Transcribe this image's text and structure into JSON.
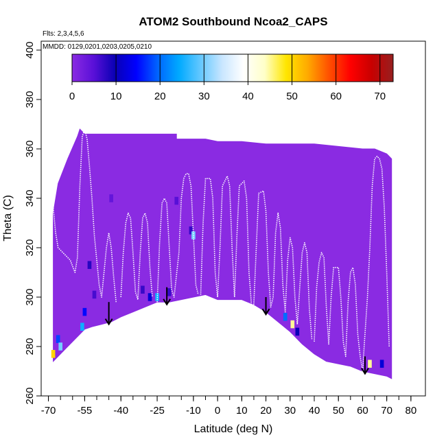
{
  "chart_data": {
    "type": "heatmap",
    "title": "ATOM2 Southbound Ncoa2_CAPS",
    "flights_note": "Flts: 2,3,4,5,6",
    "dates_note": "MMDD: 0129,0201,0203,0205,0210",
    "xlabel": "Latitude (deg N)",
    "ylabel": "Theta (C)",
    "xlim": [
      -70,
      80
    ],
    "ylim": [
      260,
      400
    ],
    "x_tick_labels": [
      "-70",
      "-55",
      "-40",
      "-25",
      "-10",
      "0",
      "10",
      "20",
      "30",
      "40",
      "50",
      "60",
      "70",
      "80"
    ],
    "x_tick_values": [
      -70,
      -55,
      -40,
      -25,
      -10,
      0,
      10,
      20,
      30,
      40,
      50,
      60,
      70,
      80
    ],
    "y_tick_labels": [
      "260",
      "280",
      "300",
      "320",
      "340",
      "360",
      "380",
      "400"
    ],
    "y_tick_values": [
      260,
      280,
      300,
      320,
      340,
      360,
      380,
      400
    ],
    "colorbar": {
      "range": [
        0,
        73
      ],
      "tick_labels": [
        "0",
        "10",
        "20",
        "30",
        "40",
        "50",
        "60",
        "70"
      ],
      "tick_values": [
        0,
        10,
        20,
        30,
        40,
        50,
        60,
        70
      ],
      "colors": [
        "#8a2be2",
        "#5a10d8",
        "#0a00b4",
        "#0000ff",
        "#0064ff",
        "#00aaff",
        "#64c8ff",
        "#c8e6ff",
        "#ffffff",
        "#ffffc8",
        "#ffe600",
        "#ffaa00",
        "#ff5000",
        "#ff0000",
        "#c80000",
        "#962020"
      ]
    },
    "background_fill_value": 0,
    "sampled_region": {
      "upper": [
        [
          -68,
          334
        ],
        [
          -66,
          346
        ],
        [
          -62,
          356
        ],
        [
          -58,
          365
        ],
        [
          -57,
          368
        ],
        [
          -55,
          366
        ],
        [
          -50,
          366
        ],
        [
          -40,
          366
        ],
        [
          -30,
          366
        ],
        [
          -17,
          366
        ],
        [
          -17,
          364
        ],
        [
          -5,
          364
        ],
        [
          0,
          363
        ],
        [
          10,
          363
        ],
        [
          20,
          362
        ],
        [
          30,
          362
        ],
        [
          40,
          362
        ],
        [
          50,
          361
        ],
        [
          60,
          360
        ],
        [
          62,
          360
        ],
        [
          65,
          360
        ],
        [
          70,
          358
        ],
        [
          72,
          356
        ]
      ],
      "lower": [
        [
          -68,
          274
        ],
        [
          -62,
          280
        ],
        [
          -57,
          285
        ],
        [
          -55,
          287
        ],
        [
          -52,
          288
        ],
        [
          -48,
          289
        ],
        [
          -44,
          290
        ],
        [
          -40,
          292
        ],
        [
          -35,
          294
        ],
        [
          -30,
          296
        ],
        [
          -25,
          298
        ],
        [
          -20,
          298
        ],
        [
          -15,
          299
        ],
        [
          -10,
          300
        ],
        [
          -5,
          301
        ],
        [
          0,
          299
        ],
        [
          5,
          299
        ],
        [
          10,
          299
        ],
        [
          15,
          297
        ],
        [
          20,
          294
        ],
        [
          25,
          290
        ],
        [
          30,
          286
        ],
        [
          35,
          281
        ],
        [
          40,
          277
        ],
        [
          45,
          274
        ],
        [
          50,
          273
        ],
        [
          55,
          272
        ],
        [
          60,
          270
        ],
        [
          65,
          269
        ],
        [
          70,
          268
        ],
        [
          72,
          267
        ]
      ]
    },
    "hotspots": [
      {
        "lat": -68,
        "theta": 277,
        "value": 50
      },
      {
        "lat": -66,
        "theta": 283,
        "value": 18
      },
      {
        "lat": -65,
        "theta": 280,
        "value": 30
      },
      {
        "lat": -56,
        "theta": 288,
        "value": 25
      },
      {
        "lat": -55,
        "theta": 294,
        "value": 15
      },
      {
        "lat": -53,
        "theta": 313,
        "value": 8
      },
      {
        "lat": -51,
        "theta": 301,
        "value": 6
      },
      {
        "lat": -44,
        "theta": 340,
        "value": 4
      },
      {
        "lat": -31,
        "theta": 303,
        "value": 7
      },
      {
        "lat": -28,
        "theta": 300,
        "value": 12
      },
      {
        "lat": -25,
        "theta": 300,
        "value": 25
      },
      {
        "lat": -20,
        "theta": 302,
        "value": 7
      },
      {
        "lat": -17,
        "theta": 339,
        "value": 5
      },
      {
        "lat": -11,
        "theta": 327,
        "value": 7
      },
      {
        "lat": -10,
        "theta": 325,
        "value": 30
      },
      {
        "lat": 28,
        "theta": 292,
        "value": 20
      },
      {
        "lat": 31,
        "theta": 289,
        "value": 45
      },
      {
        "lat": 33,
        "theta": 286,
        "value": 10
      },
      {
        "lat": 63,
        "theta": 273,
        "value": 45
      },
      {
        "lat": 68,
        "theta": 273,
        "value": 12
      }
    ],
    "profile_traces": [
      [
        [
          -68,
          336
        ],
        [
          -67,
          326
        ],
        [
          -66,
          320
        ],
        [
          -64,
          318
        ],
        [
          -61,
          315
        ],
        [
          -59,
          310
        ],
        [
          -58,
          316
        ],
        [
          -57,
          345
        ],
        [
          -56,
          365
        ],
        [
          -55,
          368
        ],
        [
          -54,
          364
        ],
        [
          -53,
          353
        ],
        [
          -52,
          340
        ],
        [
          -51,
          325
        ],
        [
          -50,
          315
        ],
        [
          -49,
          305
        ],
        [
          -48,
          300
        ],
        [
          -47,
          310
        ],
        [
          -46,
          320
        ],
        [
          -45,
          326
        ],
        [
          -44,
          320
        ],
        [
          -43,
          308
        ],
        [
          -42,
          298
        ]
      ],
      [
        [
          -40,
          300
        ],
        [
          -39,
          318
        ],
        [
          -38,
          330
        ],
        [
          -37,
          334
        ],
        [
          -36,
          332
        ],
        [
          -35,
          318
        ],
        [
          -34,
          302
        ],
        [
          -33,
          299
        ],
        [
          -32,
          318
        ],
        [
          -31,
          332
        ],
        [
          -30,
          334
        ],
        [
          -29,
          330
        ],
        [
          -28,
          312
        ],
        [
          -27,
          300
        ]
      ],
      [
        [
          -25,
          298
        ],
        [
          -24,
          322
        ],
        [
          -23,
          338
        ],
        [
          -22,
          340
        ],
        [
          -21,
          338
        ],
        [
          -20,
          320
        ],
        [
          -19,
          303
        ],
        [
          -18,
          300
        ],
        [
          -16,
          318
        ],
        [
          -15,
          340
        ],
        [
          -14,
          348
        ],
        [
          -13,
          350
        ],
        [
          -12,
          350
        ],
        [
          -11,
          345
        ],
        [
          -10,
          325
        ],
        [
          -9,
          305
        ],
        [
          -8,
          301
        ]
      ],
      [
        [
          -7,
          301
        ],
        [
          -6,
          330
        ],
        [
          -5,
          348
        ],
        [
          -3,
          348
        ],
        [
          -2,
          340
        ],
        [
          -1,
          310
        ],
        [
          0,
          300
        ],
        [
          1,
          320
        ],
        [
          2,
          345
        ],
        [
          4,
          349
        ],
        [
          5,
          345
        ],
        [
          6,
          320
        ],
        [
          7,
          300
        ],
        [
          8,
          325
        ],
        [
          9,
          345
        ],
        [
          11,
          347
        ],
        [
          12,
          340
        ],
        [
          13,
          310
        ],
        [
          14,
          297
        ]
      ],
      [
        [
          15,
          297
        ],
        [
          16,
          320
        ],
        [
          17,
          342
        ],
        [
          19,
          343
        ],
        [
          20,
          335
        ],
        [
          21,
          310
        ],
        [
          22,
          296
        ],
        [
          23,
          300
        ],
        [
          24,
          326
        ],
        [
          25,
          334
        ],
        [
          26,
          328
        ],
        [
          27,
          305
        ],
        [
          28,
          294
        ],
        [
          29,
          315
        ],
        [
          30,
          324
        ],
        [
          31,
          320
        ],
        [
          32,
          300
        ],
        [
          33,
          289
        ],
        [
          34,
          304
        ],
        [
          35,
          318
        ],
        [
          36,
          322
        ],
        [
          37,
          318
        ],
        [
          38,
          295
        ],
        [
          39,
          283
        ]
      ],
      [
        [
          40,
          282
        ],
        [
          41,
          304
        ],
        [
          42,
          314
        ],
        [
          43,
          318
        ],
        [
          44,
          316
        ],
        [
          45,
          296
        ],
        [
          46,
          281
        ],
        [
          47,
          300
        ],
        [
          48,
          312
        ],
        [
          50,
          312
        ],
        [
          51,
          300
        ],
        [
          52,
          282
        ],
        [
          53,
          276
        ],
        [
          54,
          298
        ],
        [
          55,
          310
        ],
        [
          56,
          312
        ],
        [
          57,
          305
        ],
        [
          58,
          285
        ],
        [
          59,
          276
        ],
        [
          60,
          270
        ],
        [
          61,
          285
        ],
        [
          62,
          300
        ],
        [
          63,
          320
        ],
        [
          64,
          345
        ],
        [
          65,
          356
        ],
        [
          66,
          357
        ],
        [
          67,
          356
        ],
        [
          68,
          352
        ],
        [
          69,
          336
        ],
        [
          70,
          310
        ],
        [
          71,
          280
        ]
      ]
    ],
    "arrows": [
      {
        "lat": -45,
        "theta_top": 298,
        "theta_bottom": 289
      },
      {
        "lat": -21,
        "theta_top": 304,
        "theta_bottom": 297
      },
      {
        "lat": 20,
        "theta_top": 300,
        "theta_bottom": 293
      },
      {
        "lat": 61,
        "theta_top": 276,
        "theta_bottom": 269
      }
    ]
  }
}
